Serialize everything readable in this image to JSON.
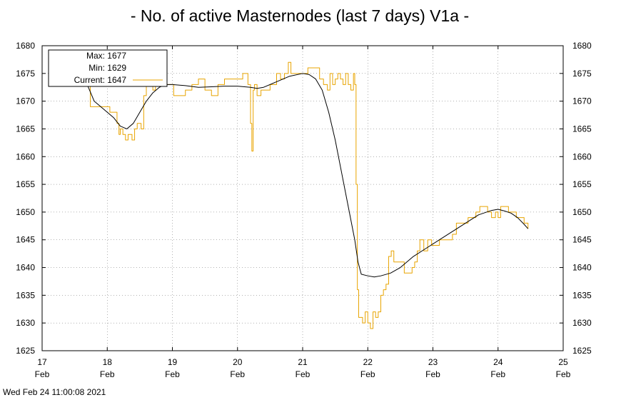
{
  "chart_data": {
    "type": "line",
    "title": "- No. of active Masternodes (last 7 days) V1a -",
    "xlim": [
      17,
      25
    ],
    "ylim": [
      1625,
      1680
    ],
    "x_ticks": [
      {
        "day": "17",
        "month": "Feb"
      },
      {
        "day": "18",
        "month": "Feb"
      },
      {
        "day": "19",
        "month": "Feb"
      },
      {
        "day": "20",
        "month": "Feb"
      },
      {
        "day": "21",
        "month": "Feb"
      },
      {
        "day": "22",
        "month": "Feb"
      },
      {
        "day": "23",
        "month": "Feb"
      },
      {
        "day": "24",
        "month": "Feb"
      },
      {
        "day": "25",
        "month": "Feb"
      }
    ],
    "y_ticks": [
      1625,
      1630,
      1635,
      1640,
      1645,
      1650,
      1655,
      1660,
      1665,
      1670,
      1675,
      1680
    ],
    "grid": true,
    "legend": {
      "position": "top-left",
      "max_label": "Max: 1677",
      "min_label": "Min: 1629",
      "current_label": "Current: 1647"
    },
    "series": [
      {
        "color": "#e8a400",
        "x": [
          17.62,
          17.68,
          17.74,
          17.8,
          17.86,
          17.92,
          17.98,
          18.04,
          18.1,
          18.15,
          18.18,
          18.2,
          18.24,
          18.28,
          18.32,
          18.38,
          18.42,
          18.46,
          18.52,
          18.56,
          18.6,
          18.62,
          18.65,
          18.7,
          18.74,
          18.78,
          18.82,
          18.86,
          18.9,
          18.96,
          19.02,
          19.1,
          19.2,
          19.3,
          19.4,
          19.5,
          19.6,
          19.7,
          19.8,
          19.9,
          20.0,
          20.08,
          20.12,
          20.16,
          20.2,
          20.22,
          20.24,
          20.26,
          20.3,
          20.36,
          20.4,
          20.5,
          20.6,
          20.66,
          20.72,
          20.78,
          20.82,
          20.88,
          20.94,
          21.0,
          21.08,
          21.14,
          21.2,
          21.26,
          21.32,
          21.38,
          21.42,
          21.46,
          21.5,
          21.54,
          21.58,
          21.62,
          21.66,
          21.7,
          21.74,
          21.78,
          21.8,
          21.82,
          21.84,
          21.86,
          21.88,
          21.9,
          21.92,
          21.96,
          22.0,
          22.04,
          22.08,
          22.12,
          22.16,
          22.2,
          22.24,
          22.28,
          22.32,
          22.36,
          22.4,
          22.44,
          22.5,
          22.56,
          22.62,
          22.68,
          22.72,
          22.76,
          22.8,
          22.86,
          22.92,
          22.98,
          23.04,
          23.1,
          23.16,
          23.22,
          23.3,
          23.36,
          23.42,
          23.48,
          23.54,
          23.6,
          23.66,
          23.72,
          23.78,
          23.84,
          23.9,
          23.96,
          24.0,
          24.04,
          24.1,
          24.16,
          24.22,
          24.28,
          24.34,
          24.4,
          24.46
        ],
        "y": [
          1675,
          1675,
          1669,
          1669,
          1669,
          1669,
          1669,
          1668,
          1668,
          1666,
          1664,
          1665,
          1664,
          1663,
          1664,
          1663,
          1665,
          1666,
          1665,
          1671,
          1676,
          1676,
          1674,
          1672,
          1674,
          1674,
          1675,
          1675,
          1673,
          1673,
          1671,
          1671,
          1672,
          1673,
          1674,
          1672,
          1671,
          1673,
          1674,
          1674,
          1674,
          1675,
          1675,
          1673,
          1666,
          1661,
          1672,
          1673,
          1671,
          1672,
          1672,
          1673,
          1675,
          1674,
          1675,
          1677,
          1675,
          1675,
          1675,
          1675,
          1676,
          1676,
          1676,
          1674,
          1673,
          1672,
          1675,
          1673,
          1674,
          1675,
          1674,
          1673,
          1675,
          1673,
          1672,
          1675,
          1673,
          1655,
          1636,
          1631,
          1631,
          1631,
          1630,
          1632,
          1630,
          1629,
          1632,
          1631,
          1632,
          1635,
          1636,
          1637,
          1642,
          1643,
          1641,
          1641,
          1641,
          1639,
          1639,
          1640,
          1641,
          1643,
          1645,
          1643,
          1645,
          1644,
          1644,
          1645,
          1645,
          1645,
          1646,
          1648,
          1648,
          1648,
          1649,
          1649,
          1650,
          1651,
          1651,
          1650,
          1649,
          1650,
          1649,
          1651,
          1651,
          1650,
          1650,
          1649,
          1649,
          1648,
          1647
        ]
      },
      {
        "color": "#000000",
        "x": [
          17.62,
          17.8,
          18.0,
          18.1,
          18.2,
          18.3,
          18.4,
          18.5,
          18.6,
          18.7,
          18.8,
          18.9,
          19.0,
          19.2,
          19.4,
          19.6,
          19.8,
          20.0,
          20.2,
          20.3,
          20.4,
          20.6,
          20.8,
          21.0,
          21.1,
          21.2,
          21.3,
          21.4,
          21.5,
          21.6,
          21.7,
          21.8,
          21.85,
          21.9,
          22.0,
          22.1,
          22.2,
          22.35,
          22.5,
          22.7,
          22.9,
          23.1,
          23.3,
          23.5,
          23.7,
          23.9,
          24.0,
          24.1,
          24.2,
          24.3,
          24.4,
          24.46
        ],
        "y": [
          1675,
          1670,
          1668,
          1667,
          1665.5,
          1665,
          1666,
          1668,
          1670,
          1671.5,
          1672.5,
          1673,
          1673,
          1672.8,
          1672.5,
          1672.6,
          1672.7,
          1672.7,
          1672.5,
          1672.3,
          1672.5,
          1673.5,
          1674.5,
          1675,
          1674.8,
          1674,
          1672,
          1668,
          1663,
          1657,
          1651,
          1645,
          1641,
          1638.8,
          1638.5,
          1638.3,
          1638.5,
          1639,
          1640,
          1642,
          1643.5,
          1645,
          1646.5,
          1648,
          1649.5,
          1650.3,
          1650.5,
          1650.2,
          1649.8,
          1649,
          1647.8,
          1647
        ]
      }
    ]
  },
  "footer": {
    "timestamp": "Wed Feb 24 11:00:08 2021"
  }
}
